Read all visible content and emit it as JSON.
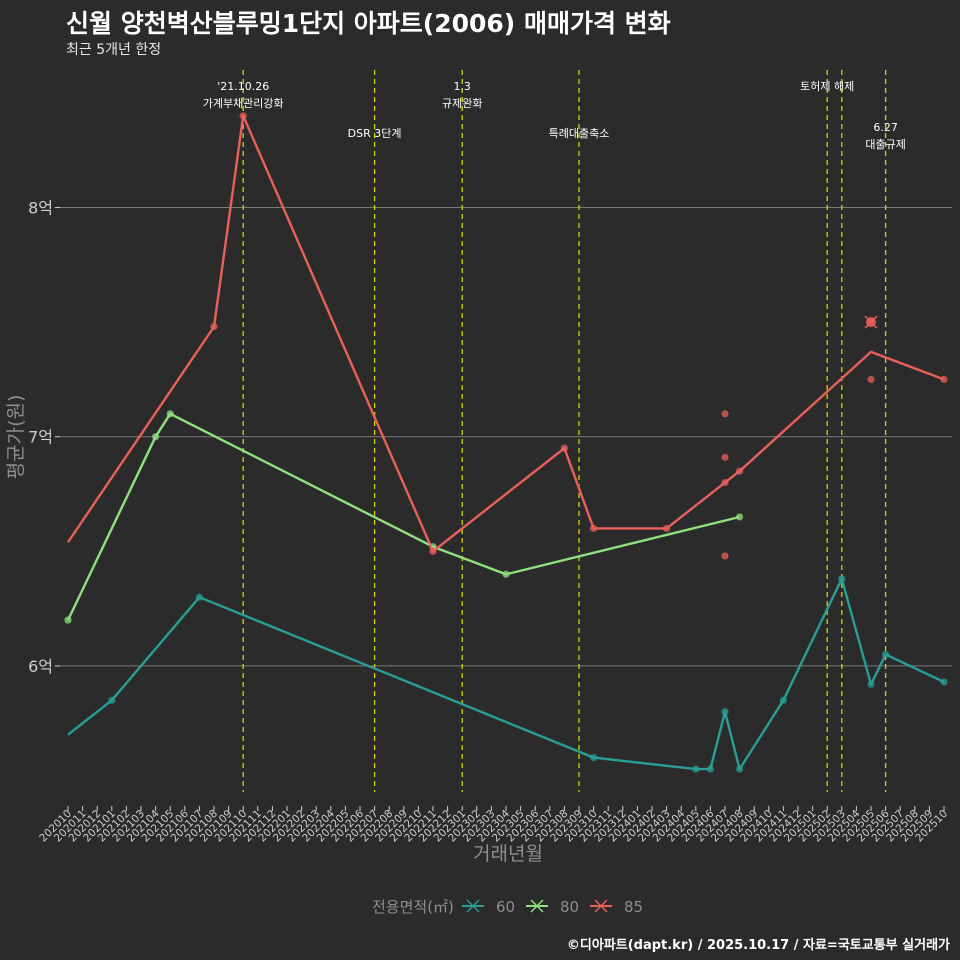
{
  "title": "신월 양천벽산블루밍1단지 아파트(2006) 매매가격 변화",
  "subtitle": "최근 5개년 한정",
  "caption": "©디아파트(dapt.kr) / 2025.10.17 / 자료=국토교통부 실거래가",
  "colors": {
    "background": "#2b2b2b",
    "grid": "#7a7a7a",
    "event_line": "#d4d400",
    "axis_text": "#cfcfcf",
    "axis_title": "#8f8f8f"
  },
  "chart_data": {
    "type": "line",
    "xlabel": "거래년월",
    "ylabel": "평균가(원)",
    "legend_title": "전용면적(㎡)",
    "legend_position": "bottom",
    "ylim": [
      5.45,
      8.6
    ],
    "yticks": [
      {
        "value": 6,
        "label": "6억"
      },
      {
        "value": 7,
        "label": "7억"
      },
      {
        "value": 8,
        "label": "8억"
      }
    ],
    "categories": [
      "202010",
      "202011",
      "202012",
      "202101",
      "202102",
      "202103",
      "202104",
      "202105",
      "202106",
      "202107",
      "202108",
      "202109",
      "202110",
      "202111",
      "202112",
      "202201",
      "202202",
      "202203",
      "202204",
      "202205",
      "202206",
      "202207",
      "202208",
      "202209",
      "202210",
      "202211",
      "202212",
      "202301",
      "202302",
      "202303",
      "202304",
      "202305",
      "202306",
      "202307",
      "202308",
      "202309",
      "202310",
      "202311",
      "202312",
      "202401",
      "202402",
      "202403",
      "202404",
      "202405",
      "202406",
      "202407",
      "202408",
      "202409",
      "202410",
      "202411",
      "202412",
      "202501",
      "202502",
      "202503",
      "202504",
      "202505",
      "202506",
      "202507",
      "202508",
      "202509",
      "202510"
    ],
    "events": [
      {
        "x": "202110",
        "label": "'21.10.26\n가계부채관리강화",
        "row": 0
      },
      {
        "x": "202207",
        "label": "DSR 3단계",
        "row": 1
      },
      {
        "x": "202301",
        "label": "1.3\n규제완화",
        "row": 0
      },
      {
        "x": "202309",
        "label": "특례대출축소",
        "row": 1
      },
      {
        "x": "202502",
        "label": "토허제 해제",
        "row": 0
      },
      {
        "x": "202503",
        "label": "",
        "row": 0
      },
      {
        "x": "202506",
        "label": "6.27\n대출규제",
        "row": 2
      }
    ],
    "series": [
      {
        "name": "60",
        "color": "#2a9d96",
        "line": [
          [
            "202010",
            5.7
          ],
          [
            "202101",
            5.85
          ],
          [
            "202107",
            6.3
          ],
          [
            "202310",
            5.6
          ],
          [
            "202405",
            5.55
          ],
          [
            "202406",
            5.55
          ],
          [
            "202407",
            5.8
          ],
          [
            "202408",
            5.55
          ],
          [
            "202411",
            5.85
          ],
          [
            "202503",
            6.38
          ],
          [
            "202505",
            5.92
          ],
          [
            "202506",
            6.05
          ],
          [
            "202510",
            5.93
          ]
        ],
        "points": [
          [
            "202101",
            5.85
          ],
          [
            "202107",
            6.3
          ],
          [
            "202310",
            5.6
          ],
          [
            "202405",
            5.55
          ],
          [
            "202406",
            5.55
          ],
          [
            "202407",
            5.8
          ],
          [
            "202408",
            5.55
          ],
          [
            "202411",
            5.85
          ],
          [
            "202503",
            6.38
          ],
          [
            "202505",
            5.92
          ],
          [
            "202506",
            6.05
          ],
          [
            "202510",
            5.93
          ]
        ]
      },
      {
        "name": "80",
        "color": "#90e080",
        "line": [
          [
            "202010",
            6.2
          ],
          [
            "202104",
            7.0
          ],
          [
            "202105",
            7.1
          ],
          [
            "202211",
            6.52
          ],
          [
            "202304",
            6.4
          ],
          [
            "202408",
            6.65
          ]
        ],
        "points": [
          [
            "202010",
            6.2
          ],
          [
            "202104",
            7.0
          ],
          [
            "202105",
            7.1
          ],
          [
            "202211",
            6.52
          ],
          [
            "202304",
            6.4
          ],
          [
            "202408",
            6.65
          ]
        ]
      },
      {
        "name": "85",
        "color": "#e8605a",
        "line": [
          [
            "202010",
            6.54
          ],
          [
            "202108",
            7.48
          ],
          [
            "202110",
            8.4
          ],
          [
            "202211",
            6.5
          ],
          [
            "202308",
            6.95
          ],
          [
            "202310",
            6.6
          ],
          [
            "202403",
            6.6
          ],
          [
            "202407",
            6.8
          ],
          [
            "202408",
            6.85
          ],
          [
            "202505",
            7.37
          ],
          [
            "202510",
            7.25
          ]
        ],
        "points": [
          [
            "202108",
            7.48
          ],
          [
            "202110",
            8.4
          ],
          [
            "202211",
            6.5
          ],
          [
            "202308",
            6.95
          ],
          [
            "202310",
            6.6
          ],
          [
            "202403",
            6.6
          ],
          [
            "202407",
            6.8
          ],
          [
            "202407",
            6.48
          ],
          [
            "202407",
            6.91
          ],
          [
            "202407",
            7.1
          ],
          [
            "202408",
            6.85
          ],
          [
            "202505",
            7.25
          ],
          [
            "202510",
            7.25
          ]
        ],
        "highlight": [
          [
            "202505",
            7.5
          ]
        ]
      }
    ]
  }
}
